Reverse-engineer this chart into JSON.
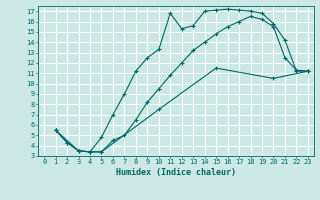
{
  "xlabel": "Humidex (Indice chaleur)",
  "bg_color": "#cce8e4",
  "grid_color": "#ffffff",
  "line_color": "#006666",
  "xlim": [
    -0.5,
    23.5
  ],
  "ylim": [
    3,
    17.5
  ],
  "xticks": [
    0,
    1,
    2,
    3,
    4,
    5,
    6,
    7,
    8,
    9,
    10,
    11,
    12,
    13,
    14,
    15,
    16,
    17,
    18,
    19,
    20,
    21,
    22,
    23
  ],
  "yticks": [
    3,
    4,
    5,
    6,
    7,
    8,
    9,
    10,
    11,
    12,
    13,
    14,
    15,
    16,
    17
  ],
  "line1_x": [
    1,
    2,
    3,
    4,
    5,
    6,
    7,
    8,
    9,
    10,
    11,
    12,
    13,
    14,
    15,
    16,
    17,
    18,
    19,
    20,
    21,
    22,
    23
  ],
  "line1_y": [
    5.5,
    4.3,
    3.5,
    3.4,
    4.8,
    7.0,
    9.0,
    11.2,
    12.5,
    13.3,
    16.8,
    15.3,
    15.6,
    17.0,
    17.1,
    17.2,
    17.1,
    17.0,
    16.8,
    15.8,
    14.2,
    11.2,
    11.2
  ],
  "line2_x": [
    1,
    2,
    3,
    4,
    5,
    6,
    7,
    8,
    9,
    10,
    11,
    12,
    13,
    14,
    15,
    16,
    17,
    18,
    19,
    20,
    21,
    22,
    23
  ],
  "line2_y": [
    5.5,
    4.3,
    3.5,
    3.4,
    3.4,
    4.5,
    5.0,
    6.5,
    8.2,
    9.5,
    10.8,
    12.0,
    13.2,
    14.0,
    14.8,
    15.5,
    16.0,
    16.5,
    16.2,
    15.5,
    12.5,
    11.3,
    11.2
  ],
  "line3_x": [
    1,
    3,
    4,
    5,
    10,
    15,
    20,
    23
  ],
  "line3_y": [
    5.5,
    3.5,
    3.4,
    3.4,
    7.5,
    11.5,
    10.5,
    11.2
  ]
}
